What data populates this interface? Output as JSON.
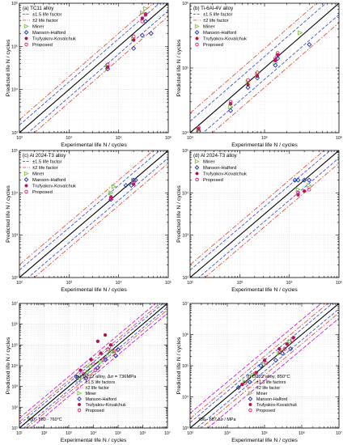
{
  "colors": {
    "miner": "#7dc242",
    "manson": "#1f2fb5",
    "truf": "#b0134f",
    "prop": "#e2206f",
    "band15": "#2a3fe0",
    "band2": "#e23a2a",
    "black": "#000000",
    "cyan": "#00b7c6",
    "yellow": "#e0c000",
    "orange": "#f08a1a",
    "pink": "#ff3ac8",
    "magenta": "#cc00cc"
  },
  "chart_data": [
    {
      "type": "scatter",
      "title": "(a) TC11 alloy",
      "xlabel": "Experimental life N",
      "ylabel": "Predicted life N",
      "xlim": [
        1000,
        1000000
      ],
      "ylim": [
        1000,
        1000000
      ],
      "log_scale": true,
      "legend_position": "top-left",
      "x_tick_labels": [
        "10³",
        "10⁴",
        "10⁵",
        "10⁶"
      ],
      "y_tick_labels": [
        "10³",
        "10⁴",
        "10⁵",
        "10⁶"
      ],
      "legend": [
        "±1.5 life factor",
        "±2 life factor",
        "Miner",
        "Manson-Halford",
        "Trufyakov-Kovalchuk",
        "Proposed"
      ],
      "series": [
        {
          "name": "Miner",
          "points": [
            [
              60000,
              35000
            ],
            [
              200000,
              150000
            ],
            [
              300000,
              600000
            ],
            [
              350000,
              750000
            ]
          ]
        },
        {
          "name": "Manson-Halford",
          "points": [
            [
              60000,
              30000
            ],
            [
              200000,
              90000
            ],
            [
              300000,
              180000
            ],
            [
              450000,
              200000
            ],
            [
              350000,
              380000
            ]
          ]
        },
        {
          "name": "Trufyakov-Kovalchuk",
          "points": [
            [
              60000,
              33000
            ],
            [
              200000,
              140000
            ],
            [
              300000,
              450000
            ],
            [
              350000,
              540000
            ]
          ]
        },
        {
          "name": "Proposed",
          "points": [
            [
              60000,
              38000
            ],
            [
              200000,
              170000
            ],
            [
              300000,
              380000
            ],
            [
              350000,
              560000
            ]
          ]
        }
      ]
    },
    {
      "type": "scatter",
      "title": "(b) Ti-6Al-4V alloy",
      "xlabel": "Experimental life N",
      "ylabel": "Predicted life N",
      "xlim": [
        10000,
        1000000
      ],
      "ylim": [
        10000,
        1000000
      ],
      "log_scale": true,
      "legend_position": "top-left",
      "x_tick_labels": [
        "10⁴",
        "10⁵",
        "10⁶"
      ],
      "y_tick_labels": [
        "10⁴",
        "10⁵",
        "10⁶"
      ],
      "legend": [
        "±1.5 life factor",
        "±2 life factor",
        "Miner",
        "Manson-Halford",
        "Trufyakov-Kovalchuk",
        "Proposed"
      ],
      "series": [
        {
          "name": "Miner",
          "points": [
            [
              13000,
              11000
            ],
            [
              35000,
              25000
            ],
            [
              60000,
              60000
            ],
            [
              80000,
              80000
            ],
            [
              140000,
              120000
            ],
            [
              150000,
              150000
            ],
            [
              300000,
              350000
            ]
          ]
        },
        {
          "name": "Manson-Halford",
          "points": [
            [
              13000,
              10500
            ],
            [
              35000,
              22000
            ],
            [
              60000,
              50000
            ],
            [
              80000,
              70000
            ],
            [
              140000,
              110000
            ],
            [
              150000,
              140000
            ],
            [
              400000,
              230000
            ]
          ]
        },
        {
          "name": "Trufyakov-Kovalchuk",
          "points": [
            [
              13000,
              11500
            ],
            [
              35000,
              28000
            ],
            [
              60000,
              55000
            ],
            [
              80000,
              75000
            ],
            [
              140000,
              130000
            ],
            [
              150000,
              160000
            ]
          ]
        },
        {
          "name": "Proposed",
          "points": [
            [
              13000,
              12000
            ],
            [
              35000,
              30000
            ],
            [
              60000,
              65000
            ],
            [
              80000,
              85000
            ],
            [
              140000,
              140000
            ],
            [
              150000,
              170000
            ]
          ]
        }
      ]
    },
    {
      "type": "scatter",
      "title": "(c) Al 2024-T3 alloy",
      "xlabel": "Experimental life N",
      "ylabel": "Predicted life N",
      "xlim": [
        100,
        100000
      ],
      "ylim": [
        100,
        100000
      ],
      "log_scale": true,
      "legend_position": "top-left",
      "x_tick_labels": [
        "10²",
        "10³",
        "10⁴",
        "10⁵"
      ],
      "y_tick_labels": [
        "10²",
        "10³",
        "10⁴",
        "10⁵"
      ],
      "legend": [
        "±1.5 life factor",
        "±2 life factor",
        "Miner",
        "Manson-Halford",
        "Trufyakov-Kovalchuk",
        "Proposed"
      ],
      "series": [
        {
          "name": "Miner",
          "points": [
            [
              7000,
              10000
            ],
            [
              8000,
              14000
            ],
            [
              20000,
              20000
            ]
          ]
        },
        {
          "name": "Manson-Halford",
          "points": [
            [
              7000,
              7000
            ],
            [
              20000,
              20000
            ],
            [
              22000,
              20000
            ],
            [
              18000,
              15000
            ],
            [
              14000,
              15000
            ]
          ]
        },
        {
          "name": "Trufyakov-Kovalchuk",
          "points": [
            [
              7000,
              8000
            ],
            [
              20000,
              16000
            ]
          ]
        },
        {
          "name": "Proposed",
          "points": [
            [
              7000,
              7500
            ],
            [
              20000,
              18000
            ]
          ]
        }
      ]
    },
    {
      "type": "scatter",
      "title": "(d) Al 2024-T3 alloy",
      "xlabel": "Experimental life N",
      "ylabel": "Predicted life N",
      "xlim": [
        100,
        100000
      ],
      "ylim": [
        100,
        100000
      ],
      "log_scale": true,
      "legend_position": "top-left",
      "x_tick_labels": [
        "10²",
        "10³",
        "10⁴",
        "10⁵"
      ],
      "y_tick_labels": [
        "10²",
        "10³",
        "10⁴",
        "10⁵"
      ],
      "legend": [
        "Miner",
        "Manson-Halford",
        "Trufyakov-Kovalchuk",
        "Proposed"
      ],
      "series": [
        {
          "name": "Miner",
          "points": [
            [
              15000,
              12000
            ],
            [
              25000,
              15000
            ]
          ]
        },
        {
          "name": "Manson-Halford",
          "points": [
            [
              13000,
              20000
            ],
            [
              15000,
              20000
            ],
            [
              20000,
              20000
            ],
            [
              25000,
              20000
            ]
          ]
        },
        {
          "name": "Trufyakov-Kovalchuk",
          "points": [
            [
              15000,
              9000
            ],
            [
              20000,
              11000
            ]
          ]
        },
        {
          "name": "Proposed",
          "points": [
            [
              15000,
              10000
            ],
            [
              25000,
              12000
            ]
          ]
        }
      ]
    },
    {
      "type": "scatter",
      "title": "(e) DZ22 alloy, Δσ = 736MPa",
      "xlabel": "Experimental life N",
      "ylabel": "Predicted life N",
      "xlim": [
        10,
        10000000
      ],
      "ylim": [
        10,
        10000000
      ],
      "log_scale": true,
      "legend_position": "bottom-right",
      "note": "900 - 850 - 760°C",
      "x_tick_labels": [
        "10¹",
        "10²",
        "10³",
        "10⁴",
        "10⁵",
        "10⁶",
        "10⁷"
      ],
      "y_tick_labels": [
        "10¹",
        "10²",
        "10³",
        "10⁴",
        "10⁵",
        "10⁶",
        "10⁷"
      ],
      "legend": [
        "±1.5 life factors",
        "±2 life factor",
        "Miner",
        "Manson-Halford",
        "Trufyakov-Kovalchuk",
        "Proposed"
      ],
      "series": [
        {
          "name": "Miner",
          "points": [
            [
              3000,
              2500
            ],
            [
              6000,
              5000
            ],
            [
              20000,
              15000
            ],
            [
              40000,
              30000
            ],
            [
              8000,
              9000
            ],
            [
              60000,
              50000
            ]
          ]
        },
        {
          "name": "Manson-Halford",
          "points": [
            [
              2000,
              3000
            ],
            [
              5000,
              2500
            ],
            [
              15000,
              8000
            ],
            [
              30000,
              20000
            ],
            [
              80000,
              30000
            ],
            [
              100000,
              60000
            ]
          ]
        },
        {
          "name": "Trufyakov-Kovalchuk",
          "points": [
            [
              3000,
              6000
            ],
            [
              8000,
              20000
            ],
            [
              20000,
              40000
            ],
            [
              30000,
              300000
            ],
            [
              50000,
              100000
            ],
            [
              15000,
              150000
            ]
          ]
        },
        {
          "name": "Proposed",
          "points": [
            [
              4000,
              4000
            ],
            [
              10000,
              12000
            ],
            [
              25000,
              20000
            ],
            [
              40000,
              60000
            ],
            [
              70000,
              50000
            ],
            [
              12000,
              6000
            ]
          ]
        }
      ]
    },
    {
      "type": "scatter",
      "title": "(f) DZ22 alloy, 850°C",
      "xlabel": "Experimental life N",
      "ylabel": "Predicted life N",
      "xlim": [
        1000,
        10000000
      ],
      "ylim": [
        1000,
        10000000
      ],
      "log_scale": true,
      "legend_position": "bottom-right",
      "note": "736 - 687 Δσ / MPa",
      "x_tick_labels": [
        "10³",
        "10⁴",
        "10⁵",
        "10⁶",
        "10⁷"
      ],
      "y_tick_labels": [
        "10³",
        "10⁴",
        "10⁵",
        "10⁶",
        "10⁷"
      ],
      "legend": [
        "±1.5 life factors",
        "±2 life factor",
        "Miner",
        "Manson-Halford",
        "Trufyakov-Kovalchuk",
        "Proposed"
      ],
      "series": [
        {
          "name": "Miner",
          "points": [
            [
              30000,
              30000
            ],
            [
              50000,
              50000
            ],
            [
              100000,
              110000
            ],
            [
              250000,
              250000
            ],
            [
              300000,
              300000
            ],
            [
              500000,
              600000
            ]
          ]
        },
        {
          "name": "Manson-Halford",
          "points": [
            [
              20000,
              20000
            ],
            [
              40000,
              30000
            ],
            [
              80000,
              100000
            ],
            [
              200000,
              150000
            ],
            [
              300000,
              250000
            ],
            [
              500000,
              350000
            ]
          ]
        },
        {
          "name": "Trufyakov-Kovalchuk",
          "points": [
            [
              25000,
              25000
            ],
            [
              60000,
              60000
            ],
            [
              100000,
              150000
            ],
            [
              250000,
              350000
            ],
            [
              400000,
              500000
            ],
            [
              600000,
              800000
            ]
          ]
        },
        {
          "name": "Proposed",
          "points": [
            [
              30000,
              28000
            ],
            [
              55000,
              55000
            ],
            [
              110000,
              120000
            ],
            [
              260000,
              270000
            ],
            [
              350000,
              350000
            ],
            [
              550000,
              650000
            ]
          ]
        }
      ]
    }
  ]
}
